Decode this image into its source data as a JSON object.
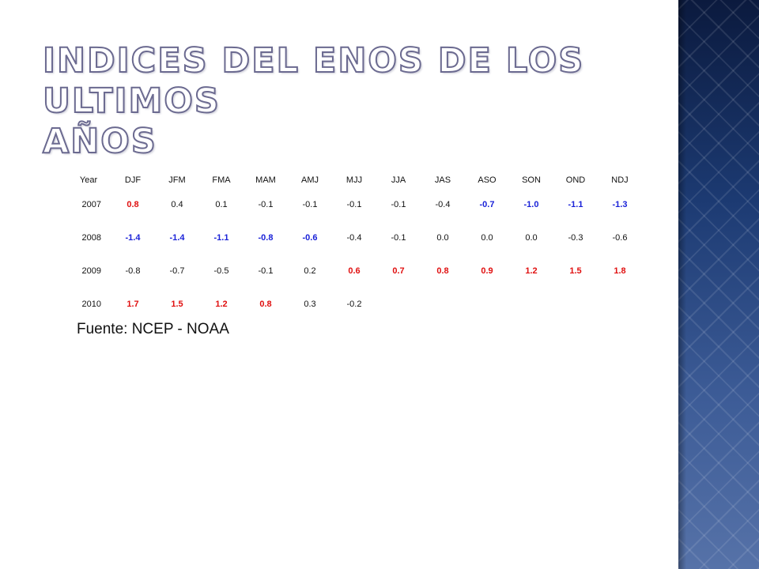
{
  "title": {
    "line1": "Indices del ENOS de los ultimos",
    "line2": "años"
  },
  "colors": {
    "warm": "#e01010",
    "cold": "#1a22d8",
    "neutral": "#111111",
    "panel": "#1c3a72"
  },
  "table": {
    "headers": [
      "Year",
      "DJF",
      "JFM",
      "FMA",
      "MAM",
      "AMJ",
      "MJJ",
      "JJA",
      "JAS",
      "ASO",
      "SON",
      "OND",
      "NDJ"
    ],
    "rows": [
      {
        "year": "2007",
        "cells": [
          {
            "v": "0.8",
            "c": "pos"
          },
          {
            "v": "0.4",
            "c": "neu"
          },
          {
            "v": "0.1",
            "c": "neu"
          },
          {
            "v": "-0.1",
            "c": "neu"
          },
          {
            "v": "-0.1",
            "c": "neu"
          },
          {
            "v": "-0.1",
            "c": "neu"
          },
          {
            "v": "-0.1",
            "c": "neu"
          },
          {
            "v": "-0.4",
            "c": "neu"
          },
          {
            "v": "-0.7",
            "c": "neg"
          },
          {
            "v": "-1.0",
            "c": "neg"
          },
          {
            "v": "-1.1",
            "c": "neg"
          },
          {
            "v": "-1.3",
            "c": "neg"
          }
        ]
      },
      {
        "year": "2008",
        "cells": [
          {
            "v": "-1.4",
            "c": "neg"
          },
          {
            "v": "-1.4",
            "c": "neg"
          },
          {
            "v": "-1.1",
            "c": "neg"
          },
          {
            "v": "-0.8",
            "c": "neg"
          },
          {
            "v": "-0.6",
            "c": "neg"
          },
          {
            "v": "-0.4",
            "c": "neu"
          },
          {
            "v": "-0.1",
            "c": "neu"
          },
          {
            "v": "0.0",
            "c": "neu"
          },
          {
            "v": "0.0",
            "c": "neu"
          },
          {
            "v": "0.0",
            "c": "neu"
          },
          {
            "v": "-0.3",
            "c": "neu"
          },
          {
            "v": "-0.6",
            "c": "neu"
          }
        ]
      },
      {
        "year": "2009",
        "cells": [
          {
            "v": "-0.8",
            "c": "neu"
          },
          {
            "v": "-0.7",
            "c": "neu"
          },
          {
            "v": "-0.5",
            "c": "neu"
          },
          {
            "v": "-0.1",
            "c": "neu"
          },
          {
            "v": "0.2",
            "c": "neu"
          },
          {
            "v": "0.6",
            "c": "pos"
          },
          {
            "v": "0.7",
            "c": "pos"
          },
          {
            "v": "0.8",
            "c": "pos"
          },
          {
            "v": "0.9",
            "c": "pos"
          },
          {
            "v": "1.2",
            "c": "pos"
          },
          {
            "v": "1.5",
            "c": "pos"
          },
          {
            "v": "1.8",
            "c": "pos"
          }
        ]
      },
      {
        "year": "2010",
        "cells": [
          {
            "v": "1.7",
            "c": "pos"
          },
          {
            "v": "1.5",
            "c": "pos"
          },
          {
            "v": "1.2",
            "c": "pos"
          },
          {
            "v": "0.8",
            "c": "pos"
          },
          {
            "v": "0.3",
            "c": "neu"
          },
          {
            "v": "-0.2",
            "c": "neu"
          },
          {
            "v": "",
            "c": "neu"
          },
          {
            "v": "",
            "c": "neu"
          },
          {
            "v": "",
            "c": "neu"
          },
          {
            "v": "",
            "c": "neu"
          },
          {
            "v": "",
            "c": "neu"
          },
          {
            "v": "",
            "c": "neu"
          }
        ]
      }
    ]
  },
  "source": "Fuente: NCEP - NOAA"
}
